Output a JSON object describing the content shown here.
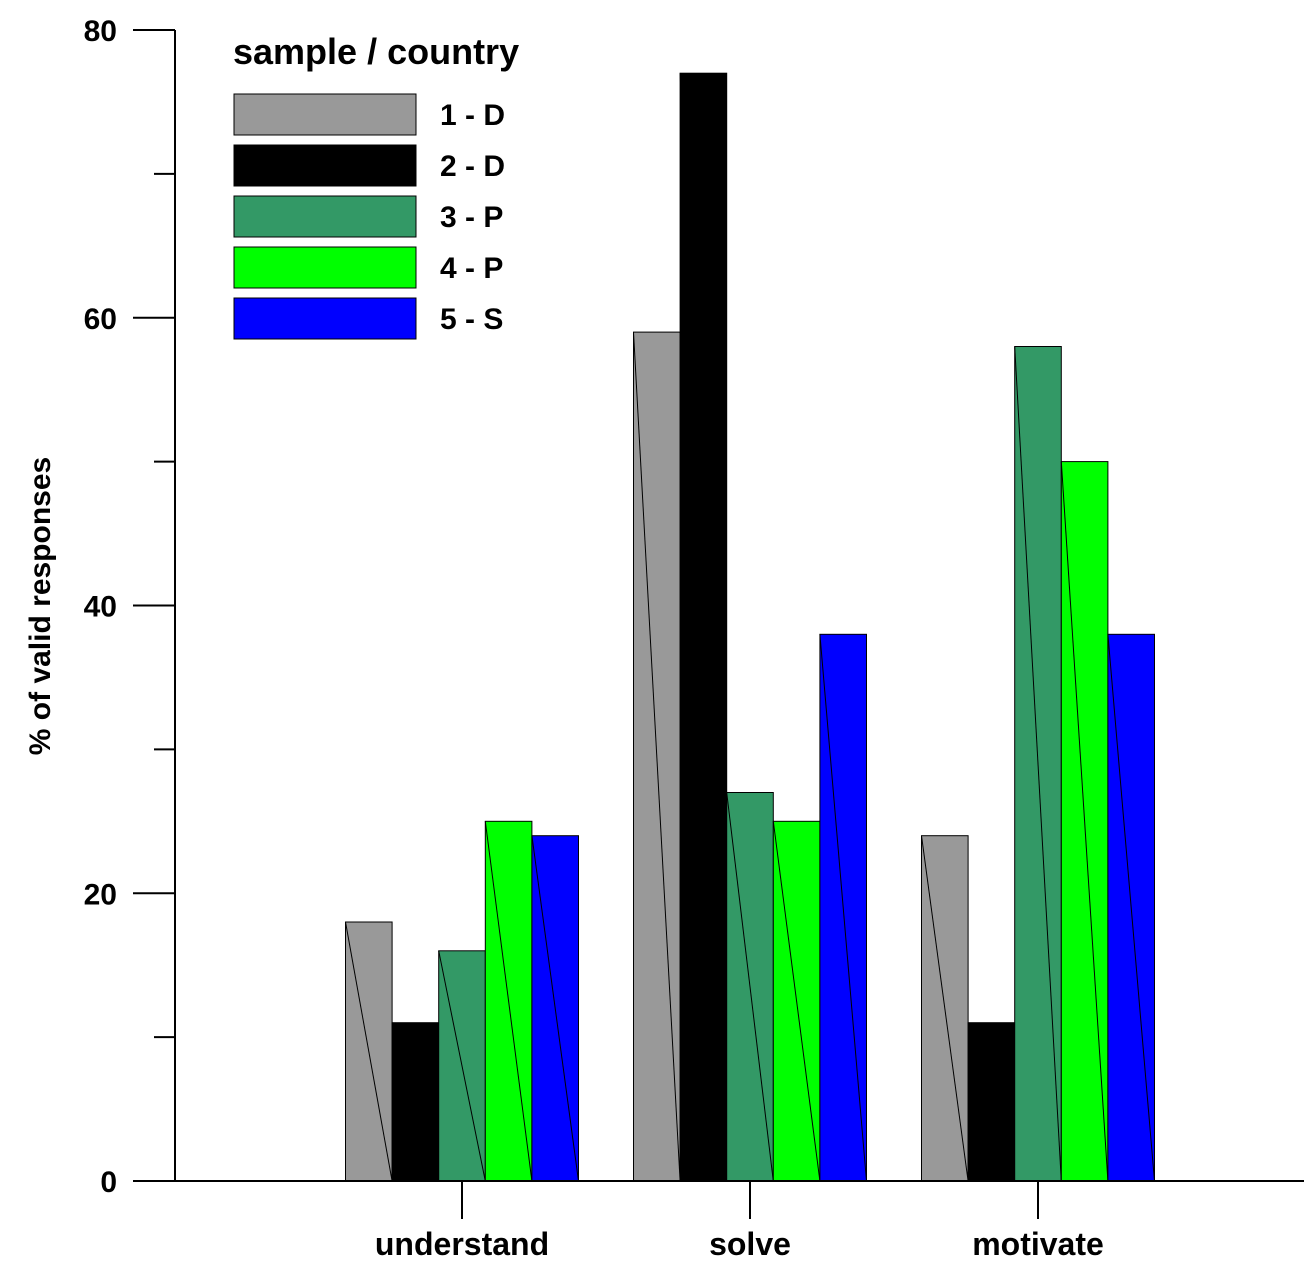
{
  "chart_data": {
    "type": "bar",
    "title": "",
    "xlabel": "",
    "ylabel": "% of valid responses",
    "ylim": [
      0,
      80
    ],
    "yticks_major": [
      0,
      20,
      40,
      60,
      80
    ],
    "yticks_minor": [
      10,
      30,
      50,
      70
    ],
    "grid": false,
    "legend_title": "sample / country",
    "legend_position": "top-left",
    "categories": [
      "understand",
      "solve",
      "motivate"
    ],
    "series": [
      {
        "name": "1 - D",
        "color": "#999999",
        "values": [
          18,
          59,
          24
        ]
      },
      {
        "name": "2 - D",
        "color": "#000000",
        "values": [
          11,
          77,
          11
        ]
      },
      {
        "name": "3 - P",
        "color": "#339966",
        "values": [
          16,
          27,
          58
        ]
      },
      {
        "name": "4 - P",
        "color": "#00ff00",
        "values": [
          25,
          25,
          50
        ]
      },
      {
        "name": "5 - S",
        "color": "#0000ff",
        "values": [
          24,
          38,
          38
        ]
      }
    ]
  }
}
